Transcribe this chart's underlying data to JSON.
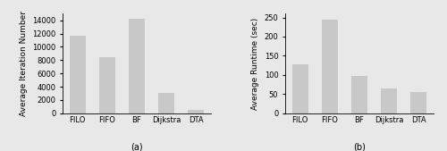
{
  "categories": [
    "FILO",
    "FIFO",
    "BF",
    "Dijkstra",
    "DTA"
  ],
  "iter_values": [
    11600,
    8400,
    14200,
    3000,
    450
  ],
  "runtime_values": [
    128,
    244,
    98,
    65,
    55
  ],
  "bar_color": "#c8c8c8",
  "iter_ylabel": "Average Iteration Number",
  "runtime_ylabel": "Average Runtime (sec)",
  "iter_ylim": [
    0,
    15000
  ],
  "runtime_ylim": [
    0,
    260
  ],
  "iter_yticks": [
    0,
    2000,
    4000,
    6000,
    8000,
    10000,
    12000,
    14000
  ],
  "runtime_yticks": [
    0,
    50,
    100,
    150,
    200,
    250
  ],
  "label_a": "(a)",
  "label_b": "(b)",
  "iter_ylabel_fontsize": 6.5,
  "runtime_ylabel_fontsize": 6.5,
  "tick_fontsize": 6,
  "xlabel_fontsize": 7,
  "fig_facecolor": "#e8e8e8",
  "axes_facecolor": "#e8e8e8"
}
